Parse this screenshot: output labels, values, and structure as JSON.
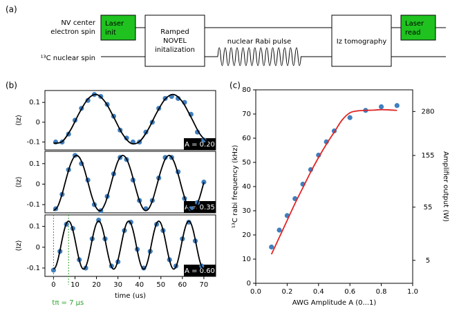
{
  "panel_labels": [
    "(a)",
    "(b)",
    "(c)"
  ],
  "diagram": {
    "nv_label": [
      "NV center",
      "electron spin"
    ],
    "c13_label": "¹³C nuclear spin",
    "laser_init": [
      "Laser",
      "init"
    ],
    "novel": [
      "Ramped",
      "NOVEL",
      "initalization"
    ],
    "rabi_pulse": "nuclear Rabi pulse",
    "tomography": "Iz tomography",
    "laser_read": [
      "Laser",
      "read"
    ]
  },
  "chart_data": [
    {
      "type": "scatter",
      "ylabel": "⟨Iz⟩",
      "annotation": "A = 0.20",
      "xlim": [
        -4,
        75.5
      ],
      "ylim": [
        -0.14,
        0.16
      ],
      "yticks": [
        -0.1,
        0,
        0.1
      ],
      "series": [
        {
          "style": "markers",
          "color": "#3f7fbf",
          "x": [
            1,
            4,
            7,
            10,
            13,
            16,
            19,
            22,
            25,
            28,
            31,
            34,
            37,
            40,
            43,
            46,
            49,
            52,
            55,
            58,
            61,
            64,
            67,
            70
          ],
          "values": [
            -0.1,
            -0.1,
            -0.06,
            0.01,
            0.07,
            0.11,
            0.14,
            0.13,
            0.09,
            0.03,
            -0.04,
            -0.08,
            -0.1,
            -0.1,
            -0.05,
            0.0,
            0.07,
            0.12,
            0.13,
            0.12,
            0.1,
            0.04,
            -0.05,
            -0.09
          ]
        },
        {
          "style": "line",
          "color": "#000000",
          "x": [
            0,
            4,
            8,
            12,
            16,
            20,
            24,
            28,
            32,
            36,
            40,
            44,
            48,
            52,
            56,
            60,
            64,
            68,
            72
          ],
          "values": [
            -0.106,
            -0.098,
            -0.038,
            0.047,
            0.117,
            0.14,
            0.103,
            0.026,
            -0.057,
            -0.106,
            -0.098,
            -0.038,
            0.047,
            0.117,
            0.14,
            0.103,
            0.026,
            -0.057,
            -0.106
          ]
        }
      ]
    },
    {
      "type": "scatter",
      "ylabel": "⟨Iz⟩",
      "annotation": "A = 0.35",
      "xlim": [
        -4,
        75.5
      ],
      "ylim": [
        -0.14,
        0.16
      ],
      "yticks": [
        -0.1,
        0,
        0.1
      ],
      "series": [
        {
          "style": "markers",
          "color": "#3f7fbf",
          "x": [
            1,
            4,
            7,
            10,
            13,
            16,
            19,
            22,
            25,
            28,
            31,
            34,
            37,
            40,
            43,
            46,
            49,
            52,
            55,
            58,
            61,
            64,
            67,
            70
          ],
          "values": [
            -0.12,
            -0.05,
            0.07,
            0.14,
            0.1,
            0.02,
            -0.1,
            -0.13,
            -0.06,
            0.05,
            0.13,
            0.12,
            0.02,
            -0.08,
            -0.12,
            -0.08,
            0.03,
            0.13,
            0.13,
            0.06,
            -0.07,
            -0.12,
            -0.09,
            0.01
          ]
        },
        {
          "style": "line",
          "color": "#000000",
          "x": [
            0,
            2,
            4,
            6,
            8,
            10,
            12,
            14,
            16,
            18,
            20,
            22,
            24,
            26,
            28,
            30,
            32,
            34,
            36,
            38,
            40,
            42,
            44,
            46,
            48,
            50,
            52,
            54,
            56,
            58,
            60,
            62,
            64,
            66,
            68,
            70
          ],
          "values": [
            -0.13,
            -0.108,
            -0.048,
            0.03,
            0.099,
            0.137,
            0.131,
            0.084,
            0.01,
            -0.065,
            -0.117,
            -0.129,
            -0.095,
            -0.029,
            0.048,
            0.112,
            0.14,
            0.123,
            0.067,
            -0.01,
            -0.081,
            -0.124,
            -0.124,
            -0.082,
            -0.01,
            0.066,
            0.122,
            0.14,
            0.112,
            0.049,
            -0.029,
            -0.095,
            -0.128,
            -0.118,
            -0.066,
            0.009
          ]
        }
      ]
    },
    {
      "type": "scatter",
      "ylabel": "⟨Iz⟩",
      "xlabel": "time (us)",
      "annotation": "A = 0.60",
      "vlines": [
        0,
        7
      ],
      "vline_color": "#2ca02c",
      "vline_label": "tπ = 7 μs",
      "xlim": [
        -4,
        75.5
      ],
      "xticks": [
        0,
        10,
        20,
        30,
        40,
        50,
        60,
        70
      ],
      "ylim": [
        -0.14,
        0.155
      ],
      "yticks": [
        -0.1,
        0,
        0.1
      ],
      "series": [
        {
          "style": "markers",
          "color": "#3f7fbf",
          "x": [
            0,
            3,
            6,
            9,
            12,
            15,
            18,
            21,
            24,
            27,
            30,
            33,
            36,
            39,
            42,
            45,
            48,
            51,
            54,
            57,
            60,
            63,
            66,
            69
          ],
          "values": [
            -0.11,
            -0.02,
            0.11,
            0.09,
            -0.06,
            -0.1,
            0.04,
            0.13,
            0.04,
            -0.09,
            -0.07,
            0.08,
            0.12,
            -0.01,
            -0.1,
            -0.02,
            0.11,
            0.08,
            -0.06,
            -0.09,
            0.04,
            0.12,
            0.03,
            -0.09
          ]
        },
        {
          "style": "line",
          "color": "#000000",
          "x": [
            0,
            1,
            2,
            3,
            4,
            5,
            6,
            7,
            8,
            9,
            10,
            11,
            12,
            13,
            14,
            15,
            16,
            17,
            18,
            19,
            20,
            21,
            22,
            23,
            24,
            25,
            26,
            27,
            28,
            29,
            30,
            31,
            32,
            33,
            34,
            35,
            36,
            37,
            38,
            39,
            40,
            41,
            42,
            43,
            44,
            45,
            46,
            47,
            48,
            49,
            50,
            51,
            52,
            53,
            54,
            55,
            56,
            57,
            58,
            59,
            60,
            61,
            62,
            63,
            64,
            65,
            66,
            67,
            68,
            69,
            70
          ],
          "values": [
            -0.105,
            -0.094,
            -0.062,
            -0.016,
            0.036,
            0.082,
            0.114,
            0.125,
            0.114,
            0.082,
            0.036,
            -0.016,
            -0.062,
            -0.094,
            -0.105,
            -0.094,
            -0.062,
            -0.016,
            0.036,
            0.082,
            0.114,
            0.125,
            0.114,
            0.082,
            0.036,
            -0.016,
            -0.062,
            -0.094,
            -0.105,
            -0.094,
            -0.062,
            -0.016,
            0.036,
            0.082,
            0.114,
            0.125,
            0.114,
            0.082,
            0.036,
            -0.016,
            -0.062,
            -0.094,
            -0.105,
            -0.094,
            -0.062,
            -0.016,
            0.036,
            0.082,
            0.114,
            0.125,
            0.114,
            0.082,
            0.036,
            -0.016,
            -0.062,
            -0.094,
            -0.105,
            -0.094,
            -0.062,
            -0.016,
            0.036,
            0.082,
            0.114,
            0.125,
            0.114,
            0.082,
            0.036,
            -0.016,
            -0.062,
            -0.094,
            -0.105
          ]
        }
      ]
    },
    {
      "type": "scatter",
      "xlabel": "AWG Amplitude A  (0...1)",
      "ylabel": "¹³C rabi frequency (kHz)",
      "y2label": "Amplifier output (W)",
      "xlim": [
        0,
        1
      ],
      "xticks": [
        {
          "value": 0,
          "label": "0.0"
        },
        0.2,
        0.4,
        0.6,
        0.8,
        {
          "value": 1,
          "label": "1.0"
        }
      ],
      "ylim": [
        0,
        80
      ],
      "yticks": [
        0,
        10,
        20,
        30,
        40,
        50,
        60,
        70,
        80
      ],
      "y2scale": "sqrt",
      "y2lim": [
        0,
        355
      ],
      "y2ticks": [
        5,
        55,
        155,
        280
      ],
      "series": [
        {
          "style": "markers",
          "color": "#3f7fbf",
          "x": [
            0.1,
            0.15,
            0.2,
            0.25,
            0.3,
            0.35,
            0.4,
            0.45,
            0.5,
            0.6,
            0.7,
            0.8,
            0.9
          ],
          "values": [
            15,
            22,
            28,
            35,
            41,
            47,
            53,
            58.5,
            63,
            68.5,
            71.5,
            73,
            73.5
          ]
        },
        {
          "style": "line",
          "color": "#e02424",
          "x": [
            0.1,
            0.15,
            0.2,
            0.25,
            0.3,
            0.35,
            0.4,
            0.45,
            0.5,
            0.55,
            0.6,
            0.65,
            0.7,
            0.75,
            0.8,
            0.85,
            0.9
          ],
          "values": [
            12,
            19,
            26,
            33,
            39.5,
            46,
            52,
            57.5,
            62.5,
            67.5,
            70.5,
            71.3,
            71.5,
            71.6,
            71.8,
            71.7,
            71.5
          ]
        }
      ]
    }
  ]
}
